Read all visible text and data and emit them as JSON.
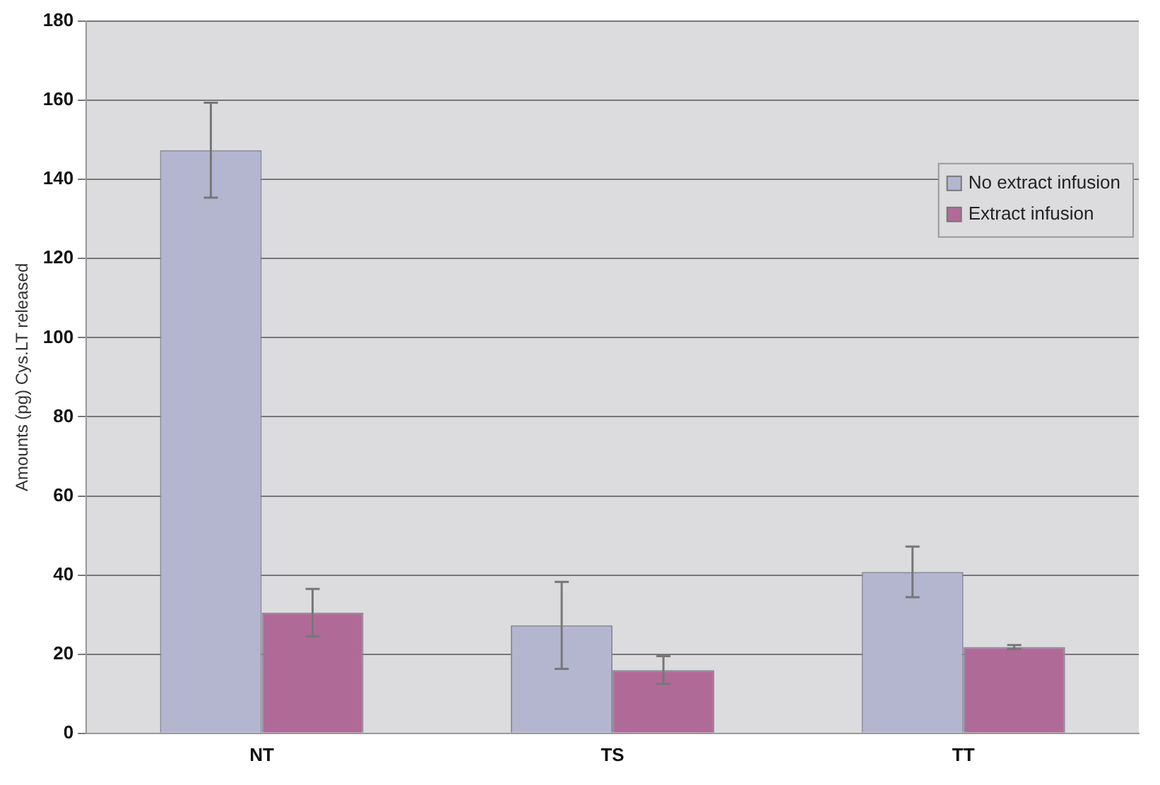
{
  "chart_data": {
    "type": "bar",
    "ylabel": "Amounts (pg) Cys.LT released",
    "categories": [
      "NT",
      "TS",
      "TT"
    ],
    "series": [
      {
        "name": "No extract infusion",
        "color": "#b4b6d0",
        "values": [
          147.4,
          27.3,
          40.8
        ],
        "errors": [
          12,
          11,
          6.4
        ]
      },
      {
        "name": "Extract infusion",
        "color": "#b06a98",
        "values": [
          30.5,
          16,
          21.8
        ],
        "errors": [
          6,
          3.5,
          0.5
        ]
      }
    ],
    "ylim": [
      0,
      180
    ],
    "yticks": [
      0,
      20,
      40,
      60,
      80,
      100,
      120,
      140,
      160,
      180
    ],
    "grid": "y",
    "legend": "top right"
  }
}
